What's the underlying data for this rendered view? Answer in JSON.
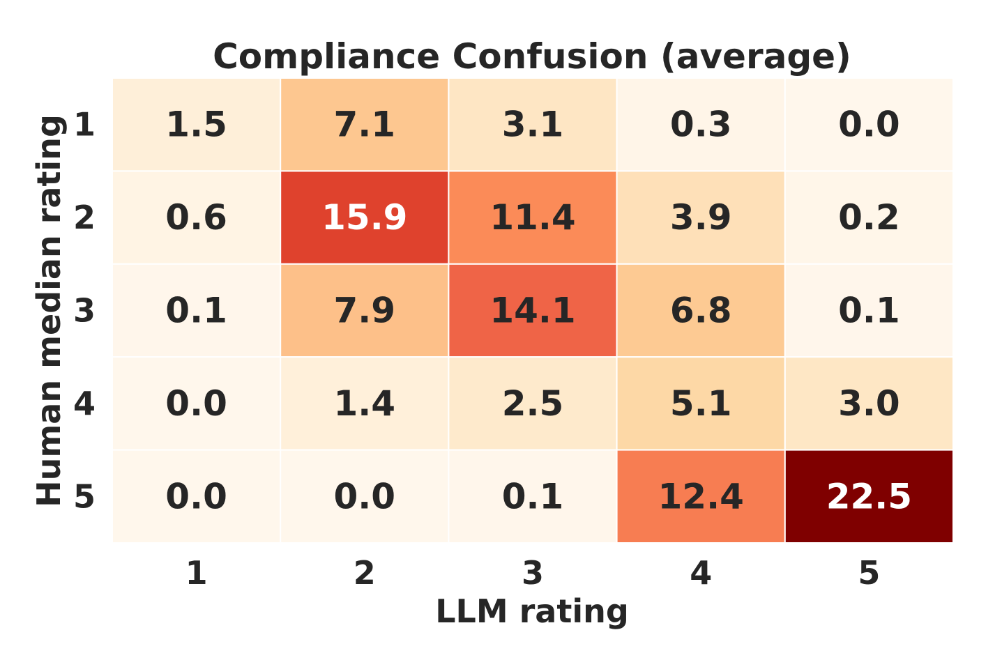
{
  "chart_data": {
    "type": "heatmap",
    "title": "Compliance Confusion (average)",
    "xlabel": "LLM rating",
    "ylabel": "Human median rating",
    "x_categories": [
      "1",
      "2",
      "3",
      "4",
      "5"
    ],
    "y_categories": [
      "1",
      "2",
      "3",
      "4",
      "5"
    ],
    "values": [
      [
        1.5,
        7.1,
        3.1,
        0.3,
        0.0
      ],
      [
        0.6,
        15.9,
        11.4,
        3.9,
        0.2
      ],
      [
        0.1,
        7.9,
        14.1,
        6.8,
        0.1
      ],
      [
        0.0,
        1.4,
        2.5,
        5.1,
        3.0
      ],
      [
        0.0,
        0.0,
        0.1,
        12.4,
        22.5
      ]
    ],
    "value_format": "0.1f",
    "colormap": "OrRd",
    "value_range": [
      0,
      22.5
    ],
    "colorbar": false
  }
}
